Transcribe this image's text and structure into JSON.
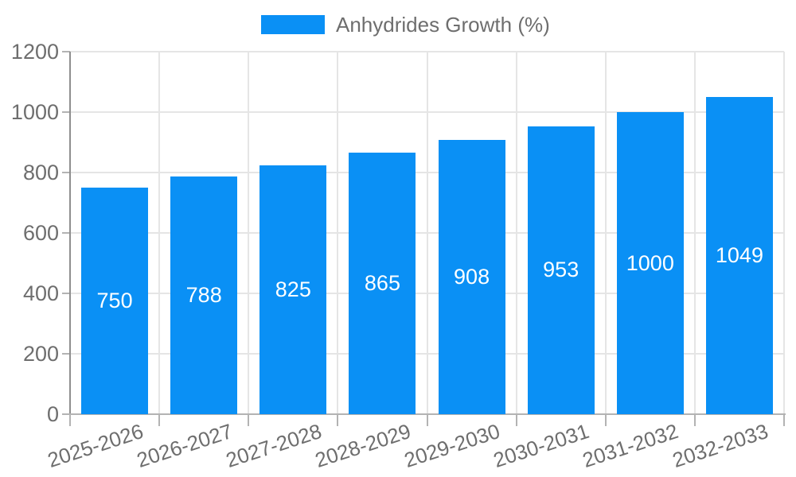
{
  "chart_data": {
    "type": "bar",
    "title": "",
    "legend": [
      "Anhydrides Growth (%)"
    ],
    "legend_position": "top",
    "categories": [
      "2025-2026",
      "2026-2027",
      "2027-2028",
      "2028-2029",
      "2029-2030",
      "2030-2031",
      "2031-2032",
      "2032-2033"
    ],
    "series": [
      {
        "name": "Anhydrides Growth (%)",
        "values": [
          750,
          788,
          825,
          865,
          908,
          953,
          1000,
          1049
        ]
      }
    ],
    "value_labels_shown": true,
    "xlabel": "",
    "ylabel": "",
    "ylim": [
      0,
      1200
    ],
    "yticks": [
      0,
      200,
      400,
      600,
      800,
      1000,
      1200
    ],
    "grid": true,
    "colors": {
      "bar": "#0a90f5",
      "bar_value_label": "#ffffff",
      "axis_text": "#6e6e6e",
      "gridline": "#e5e5e5",
      "x_axis_line": "#b3b3b3",
      "y_axis_line": "#8f8f8f",
      "tick": "#b3b3b3",
      "background": "#ffffff"
    }
  }
}
